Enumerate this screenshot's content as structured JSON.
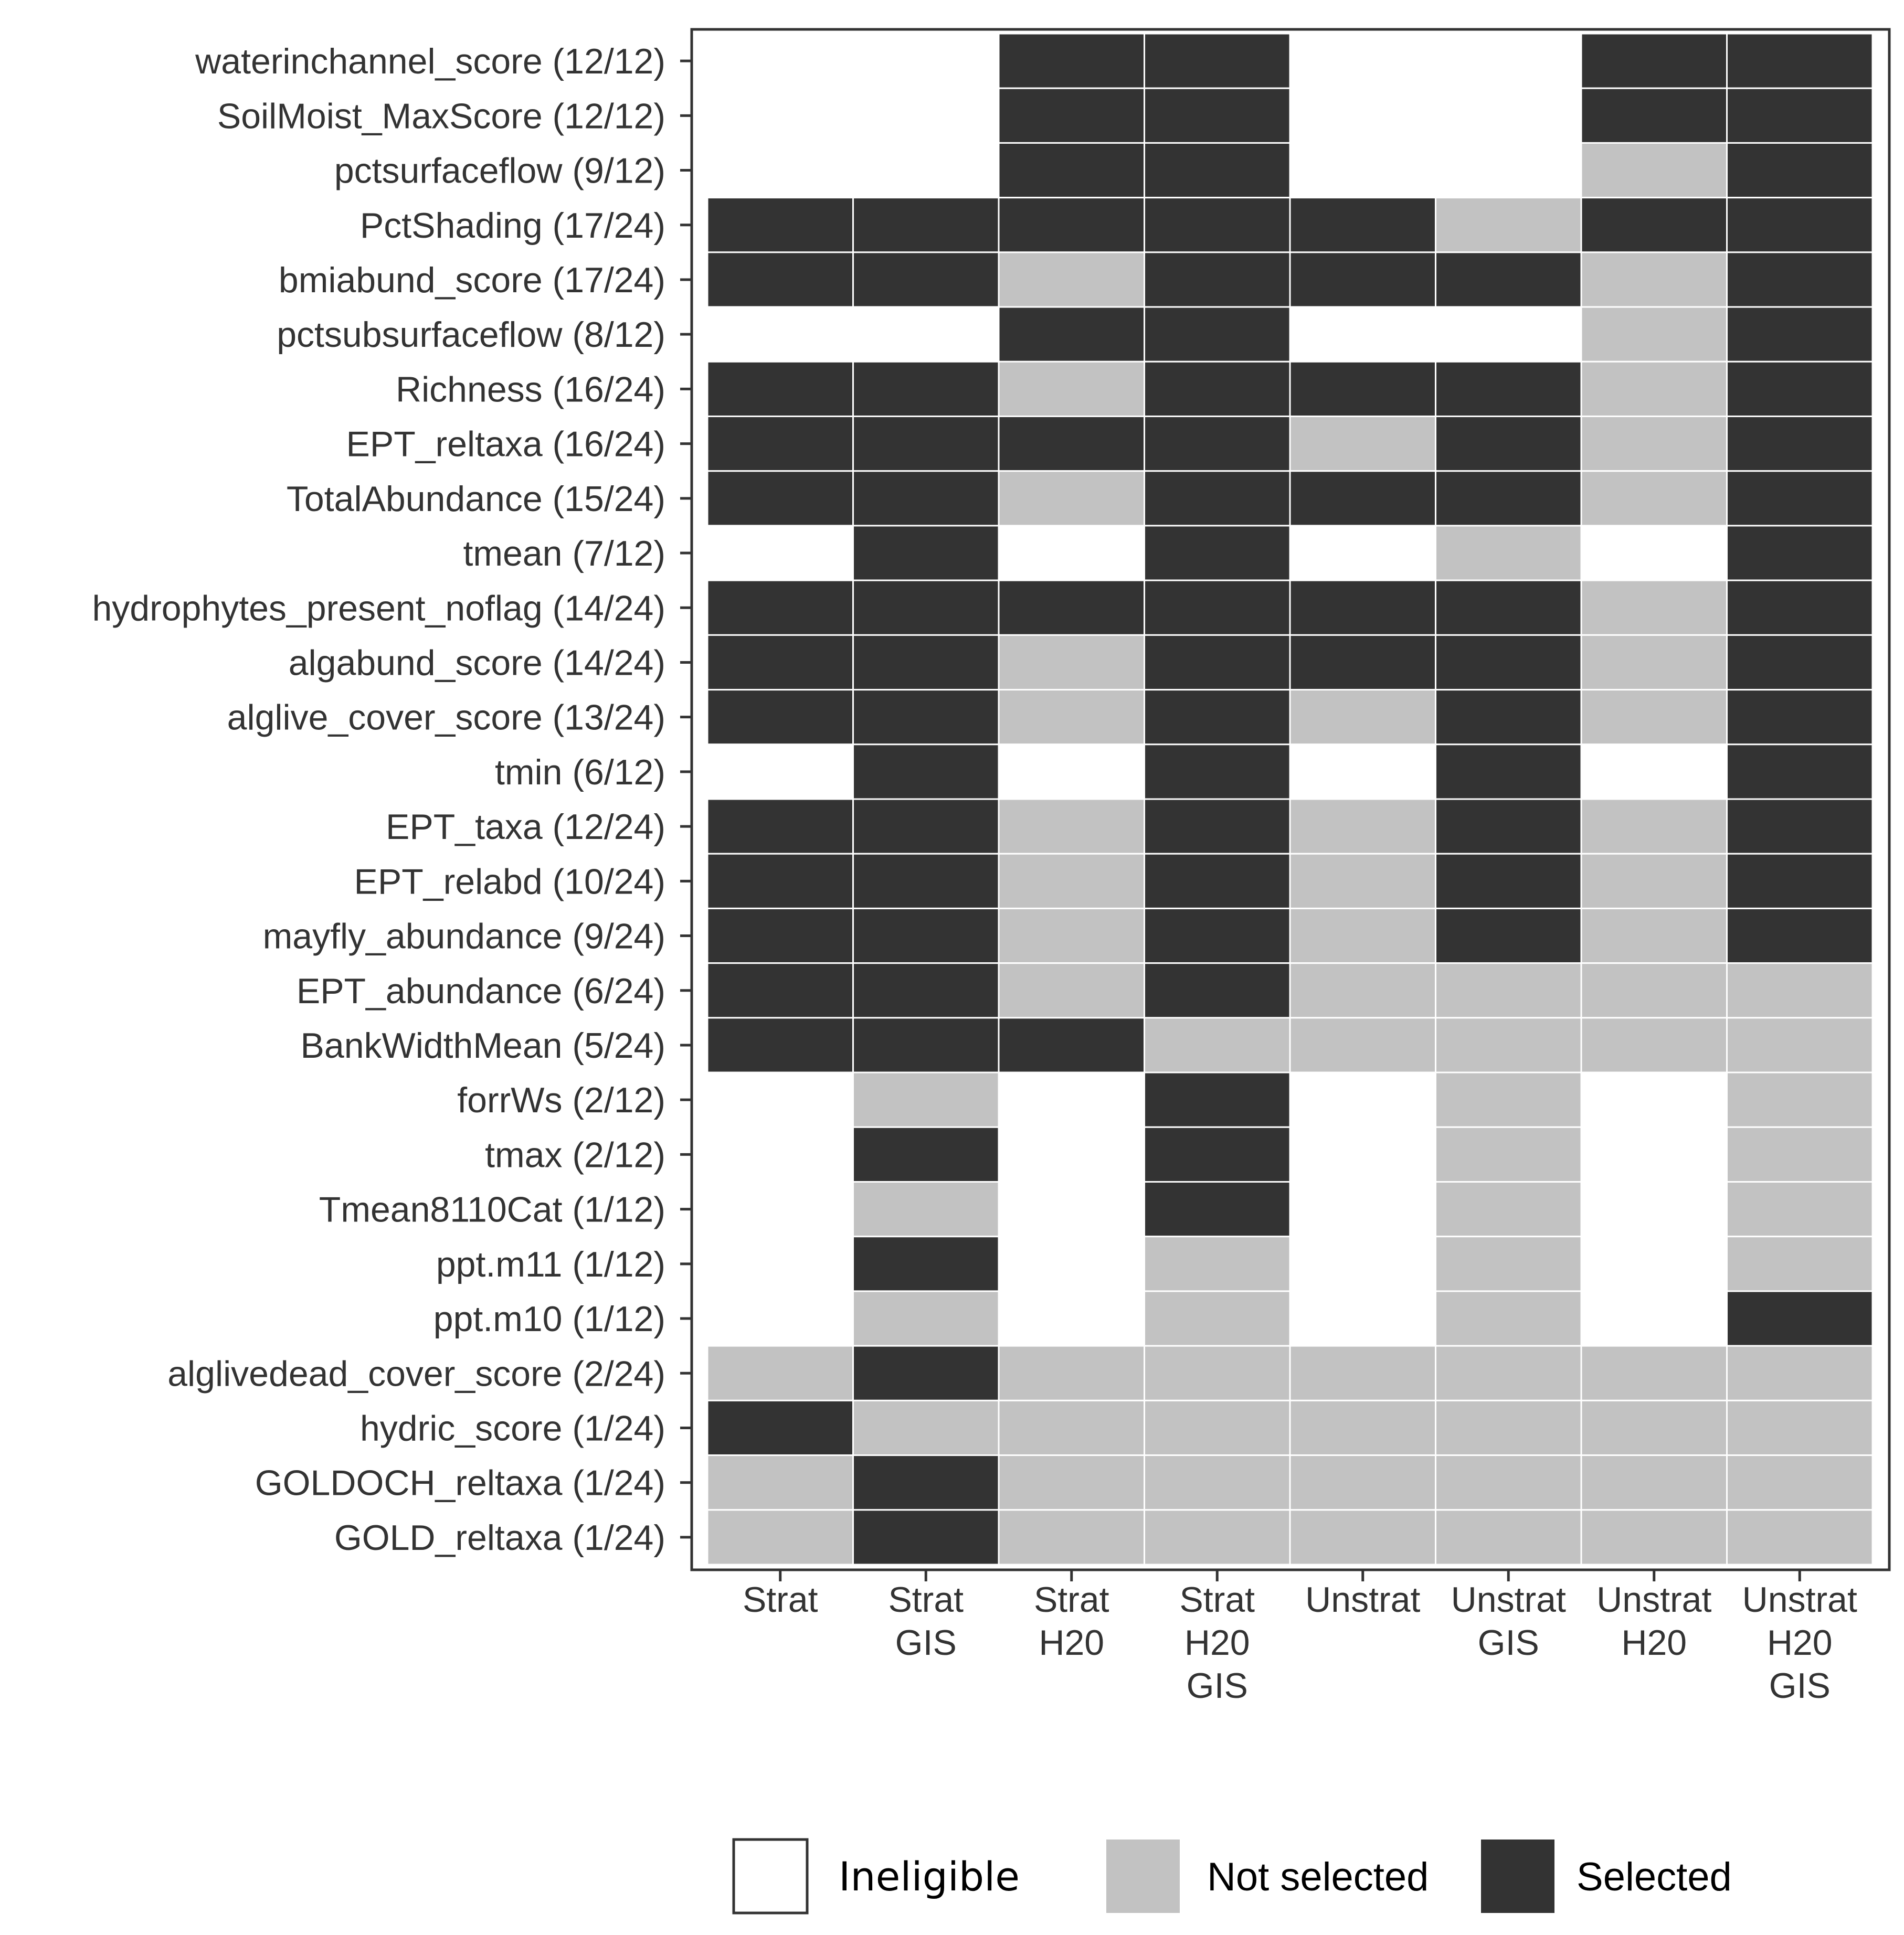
{
  "chart_data": {
    "type": "heatmap",
    "title": "",
    "xlabel": "",
    "ylabel": "",
    "columns": [
      [
        "Strat"
      ],
      [
        "Strat",
        "GIS"
      ],
      [
        "Strat",
        "H20"
      ],
      [
        "Strat",
        "H20",
        "GIS"
      ],
      [
        "Unstrat"
      ],
      [
        "Unstrat",
        "GIS"
      ],
      [
        "Unstrat",
        "H20"
      ],
      [
        "Unstrat",
        "H20",
        "GIS"
      ]
    ],
    "rows": [
      "waterinchannel_score (12/12)",
      "SoilMoist_MaxScore (12/12)",
      "pctsurfaceflow (9/12)",
      "PctShading (17/24)",
      "bmiabund_score (17/24)",
      "pctsubsurfaceflow (8/12)",
      "Richness (16/24)",
      "EPT_reltaxa (16/24)",
      "TotalAbundance (15/24)",
      "tmean (7/12)",
      "hydrophytes_present_noflag (14/24)",
      "algabund_score (14/24)",
      "alglive_cover_score (13/24)",
      "tmin (6/12)",
      "EPT_taxa (12/24)",
      "EPT_relabd (10/24)",
      "mayfly_abundance (9/24)",
      "EPT_abundance (6/24)",
      "BankWidthMean (5/24)",
      "forrWs (2/12)",
      "tmax (2/12)",
      "Tmean8110Cat (1/12)",
      "ppt.m11 (1/12)",
      "ppt.m10 (1/12)",
      "alglivedead_cover_score (2/24)",
      "hydric_score (1/24)",
      "GOLDOCH_reltaxa (1/24)",
      "GOLD_reltaxa (1/24)"
    ],
    "value_codes": {
      "0": "Ineligible",
      "1": "Not selected",
      "2": "Selected"
    },
    "values": [
      [
        0,
        0,
        2,
        2,
        0,
        0,
        2,
        2
      ],
      [
        0,
        0,
        2,
        2,
        0,
        0,
        2,
        2
      ],
      [
        0,
        0,
        2,
        2,
        0,
        0,
        1,
        2
      ],
      [
        2,
        2,
        2,
        2,
        2,
        1,
        2,
        2
      ],
      [
        2,
        2,
        1,
        2,
        2,
        2,
        1,
        2
      ],
      [
        0,
        0,
        2,
        2,
        0,
        0,
        1,
        2
      ],
      [
        2,
        2,
        1,
        2,
        2,
        2,
        1,
        2
      ],
      [
        2,
        2,
        2,
        2,
        1,
        2,
        1,
        2
      ],
      [
        2,
        2,
        1,
        2,
        2,
        2,
        1,
        2
      ],
      [
        0,
        2,
        0,
        2,
        0,
        1,
        0,
        2
      ],
      [
        2,
        2,
        2,
        2,
        2,
        2,
        1,
        2
      ],
      [
        2,
        2,
        1,
        2,
        2,
        2,
        1,
        2
      ],
      [
        2,
        2,
        1,
        2,
        1,
        2,
        1,
        2
      ],
      [
        0,
        2,
        0,
        2,
        0,
        2,
        0,
        2
      ],
      [
        2,
        2,
        1,
        2,
        1,
        2,
        1,
        2
      ],
      [
        2,
        2,
        1,
        2,
        1,
        2,
        1,
        2
      ],
      [
        2,
        2,
        1,
        2,
        1,
        2,
        1,
        2
      ],
      [
        2,
        2,
        1,
        2,
        1,
        1,
        1,
        1
      ],
      [
        2,
        2,
        2,
        1,
        1,
        1,
        1,
        1
      ],
      [
        0,
        1,
        0,
        2,
        0,
        1,
        0,
        1
      ],
      [
        0,
        2,
        0,
        2,
        0,
        1,
        0,
        1
      ],
      [
        0,
        1,
        0,
        2,
        0,
        1,
        0,
        1
      ],
      [
        0,
        2,
        0,
        1,
        0,
        1,
        0,
        1
      ],
      [
        0,
        1,
        0,
        1,
        0,
        1,
        0,
        2
      ],
      [
        1,
        2,
        1,
        1,
        1,
        1,
        1,
        1
      ],
      [
        2,
        1,
        1,
        1,
        1,
        1,
        1,
        1
      ],
      [
        1,
        2,
        1,
        1,
        1,
        1,
        1,
        1
      ],
      [
        1,
        2,
        1,
        1,
        1,
        1,
        1,
        1
      ]
    ],
    "colors": {
      "0": "#ffffff",
      "1": "#c2c2c2",
      "2": "#333333"
    },
    "legend": {
      "position": "bottom",
      "items": [
        {
          "label": "Ineligible",
          "code": 0,
          "color": "#ffffff"
        },
        {
          "label": "Not selected",
          "code": 1,
          "color": "#c2c2c2"
        },
        {
          "label": "Selected",
          "code": 2,
          "color": "#333333"
        }
      ]
    },
    "grid": false
  }
}
